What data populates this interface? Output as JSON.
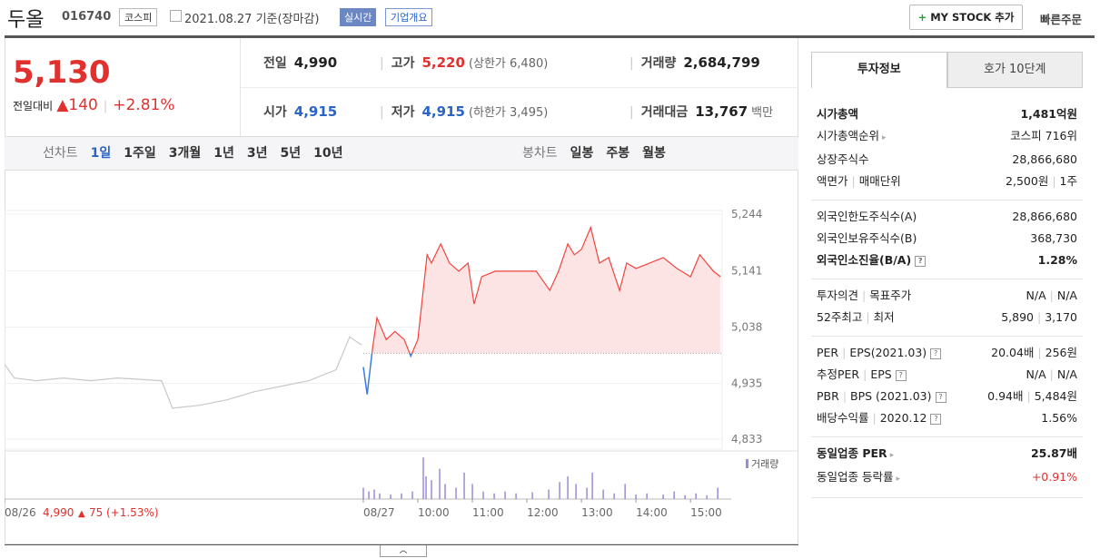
{
  "header": {
    "name": "두올",
    "code": "016740",
    "market": "코스피",
    "date": "2021.08.27 기준(장마감)",
    "realtime": "실시간",
    "company": "기업개요",
    "my_stock": "MY STOCK 추가",
    "quick_order": "빠른주문"
  },
  "quote": {
    "price": "5,130",
    "change_label": "전일대비",
    "change": "140",
    "rate": "+2.81%",
    "items": [
      {
        "label": "전일",
        "value": "4,990",
        "color": "#222"
      },
      {
        "label": "고가",
        "value": "5,220",
        "note": "(상한가 6,480)",
        "color": "#e0312e"
      },
      {
        "label": "거래량",
        "value": "2,684,799",
        "color": "#222"
      },
      {
        "label": "시가",
        "value": "4,915",
        "color": "#2a64c8"
      },
      {
        "label": "저가",
        "value": "4,915",
        "note": "(하한가 3,495)",
        "color": "#2a64c8"
      },
      {
        "label": "거래대금",
        "value": "13,767",
        "note": "백만",
        "color": "#222"
      }
    ]
  },
  "chart_tabs": {
    "line_label": "선차트",
    "line_periods": [
      "1일",
      "1주일",
      "3개월",
      "1년",
      "3년",
      "5년",
      "10년"
    ],
    "candle_label": "봉차트",
    "candle_periods": [
      "일봉",
      "주봉",
      "월봉"
    ]
  },
  "chart_data": {
    "type": "line",
    "xlim": [
      2.42,
      15.58
    ],
    "ylim": [
      4815,
      5304
    ],
    "yticks": [
      {
        "value": 4833,
        "label": "4,833"
      },
      {
        "value": 4935,
        "label": "4,935"
      },
      {
        "value": 5038,
        "label": "5,038"
      },
      {
        "value": 5141,
        "label": "5,141"
      },
      {
        "value": 5244,
        "label": "5,244"
      }
    ],
    "xticks": [
      {
        "value": 2.42,
        "label": "08/26"
      },
      {
        "value": 9,
        "label": "08/27"
      },
      {
        "value": 10,
        "label": "10:00"
      },
      {
        "value": 11,
        "label": "11:00"
      },
      {
        "value": 12,
        "label": "12:00"
      },
      {
        "value": 13,
        "label": "13:00"
      },
      {
        "value": 14,
        "label": "14:00"
      },
      {
        "value": 15,
        "label": "15:00"
      }
    ],
    "baseline": 4990,
    "up_color": "#f0443c",
    "down_color": "#3b7be0",
    "fill_color": "#fde4e4",
    "series": [
      {
        "color": "#c8c8c8",
        "x": [
          2.42,
          2.6,
          3.0,
          3.5,
          4.0,
          4.5,
          5.3,
          5.5,
          6.0,
          6.5,
          7.0,
          7.5,
          8.0,
          8.5,
          8.75,
          8.97
        ],
        "values": [
          4970,
          4945,
          4940,
          4945,
          4940,
          4945,
          4940,
          4890,
          4895,
          4905,
          4920,
          4930,
          4940,
          4960,
          5020,
          5005
        ]
      },
      {
        "color": "#f0443c",
        "x": [
          9.0,
          9.07,
          9.17,
          9.25,
          9.42,
          9.58,
          9.75,
          9.87,
          10.0,
          10.17,
          10.25,
          10.42,
          10.58,
          10.75,
          10.92,
          11.03,
          11.17,
          11.42,
          11.67,
          11.92,
          12.17,
          12.42,
          12.58,
          12.75,
          12.87,
          13.0,
          13.17,
          13.33,
          13.5,
          13.7,
          13.83,
          14.0,
          14.25,
          14.5,
          14.75,
          15.0,
          15.17,
          15.42,
          15.55
        ],
        "values": [
          4965,
          4915,
          5000,
          5055,
          5015,
          5030,
          5015,
          4985,
          5015,
          5170,
          5155,
          5190,
          5155,
          5140,
          5155,
          5080,
          5130,
          5140,
          5140,
          5140,
          5140,
          5105,
          5140,
          5190,
          5170,
          5180,
          5220,
          5155,
          5165,
          5105,
          5155,
          5145,
          5155,
          5165,
          5145,
          5130,
          5170,
          5140,
          5130
        ]
      }
    ],
    "volume": {
      "name": "거래량",
      "color": "#9e8ad6",
      "vlim": [
        0,
        120000
      ],
      "x": [
        9.0,
        9.1,
        9.2,
        9.3,
        9.5,
        9.7,
        9.9,
        10.1,
        10.15,
        10.25,
        10.4,
        10.5,
        10.7,
        10.85,
        11.0,
        11.2,
        11.4,
        11.6,
        11.8,
        12.1,
        12.4,
        12.6,
        12.75,
        12.9,
        13.1,
        13.2,
        13.4,
        13.6,
        13.8,
        14.0,
        14.2,
        14.5,
        14.7,
        14.9,
        15.1,
        15.3,
        15.5
      ],
      "values": [
        30000,
        20000,
        25000,
        15000,
        12000,
        15000,
        20000,
        110000,
        60000,
        50000,
        80000,
        40000,
        30000,
        70000,
        40000,
        20000,
        15000,
        20000,
        15000,
        18000,
        25000,
        45000,
        60000,
        40000,
        30000,
        70000,
        25000,
        15000,
        40000,
        12000,
        15000,
        12000,
        20000,
        10000,
        15000,
        10000,
        30000
      ]
    },
    "prev_note": {
      "close": "4,990",
      "change": "75",
      "rate": "(+1.53%)"
    }
  },
  "side": {
    "tabs": [
      "투자정보",
      "호가 10단계"
    ],
    "sections": [
      [
        {
          "labels": [
            "시가총액"
          ],
          "values": [
            "1,481억원"
          ],
          "bold": true
        },
        {
          "labels": [
            "시가총액순위"
          ],
          "values": [
            "코스피 716위"
          ],
          "link": true
        },
        {
          "labels": [
            "상장주식수"
          ],
          "values": [
            "28,866,680"
          ]
        },
        {
          "labels": [
            "액면가",
            "매매단위"
          ],
          "values": [
            "2,500원",
            "1주"
          ]
        }
      ],
      [
        {
          "labels": [
            "외국인한도주식수(A)"
          ],
          "values": [
            "28,866,680"
          ]
        },
        {
          "labels": [
            "외국인보유주식수(B)"
          ],
          "values": [
            "368,730"
          ]
        },
        {
          "labels": [
            "외국인소진율(B/A)"
          ],
          "values": [
            "1.28%"
          ],
          "bold": true,
          "help": true
        }
      ],
      [
        {
          "labels": [
            "투자의견",
            "목표주가"
          ],
          "values": [
            "N/A",
            "N/A"
          ]
        },
        {
          "labels": [
            "52주최고",
            "최저"
          ],
          "values": [
            "5,890",
            "3,170"
          ]
        }
      ],
      [
        {
          "labels": [
            "PER",
            "EPS(2021.03)"
          ],
          "values": [
            "20.04배",
            "256원"
          ],
          "help": true
        },
        {
          "labels": [
            "추정PER",
            "EPS"
          ],
          "values": [
            "N/A",
            "N/A"
          ],
          "help": true
        },
        {
          "labels": [
            "PBR",
            "BPS (2021.03)"
          ],
          "values": [
            "0.94배",
            "5,484원"
          ],
          "help": true
        },
        {
          "labels": [
            "배당수익률",
            "2020.12"
          ],
          "values": [
            "1.56%"
          ],
          "help": true
        }
      ],
      [
        {
          "labels": [
            "동일업종 PER"
          ],
          "values": [
            "25.87배"
          ],
          "bold": true,
          "link": true
        },
        {
          "labels": [
            "동일업종 등락률"
          ],
          "values": [
            "+0.91%"
          ],
          "link": true,
          "color": "#e0312e"
        }
      ]
    ]
  }
}
